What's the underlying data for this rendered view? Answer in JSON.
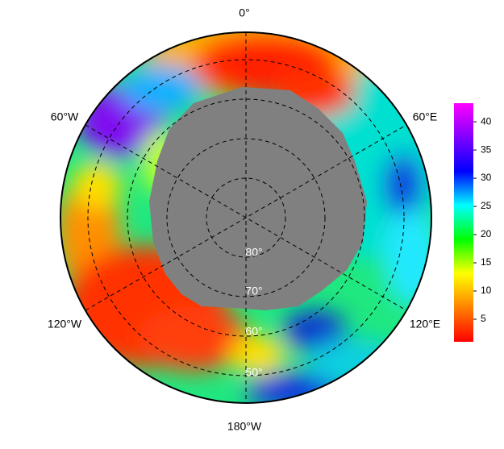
{
  "map": {
    "longitude_labels": [
      "0°",
      "60°E",
      "120°E",
      "180°W",
      "120°W",
      "60°W"
    ],
    "latitude_labels": [
      "80°",
      "70°",
      "60°",
      "50°"
    ],
    "colorbar": {
      "lim": [
        1,
        43.3
      ],
      "ticks": [
        5,
        10,
        15,
        20,
        25,
        30,
        35,
        40
      ],
      "colors": [
        "#ff0000",
        "#ff8000",
        "#ffff00",
        "#00ff00",
        "#00ffff",
        "#0000ff",
        "#8000ff",
        "#ff00ff"
      ]
    }
  }
}
